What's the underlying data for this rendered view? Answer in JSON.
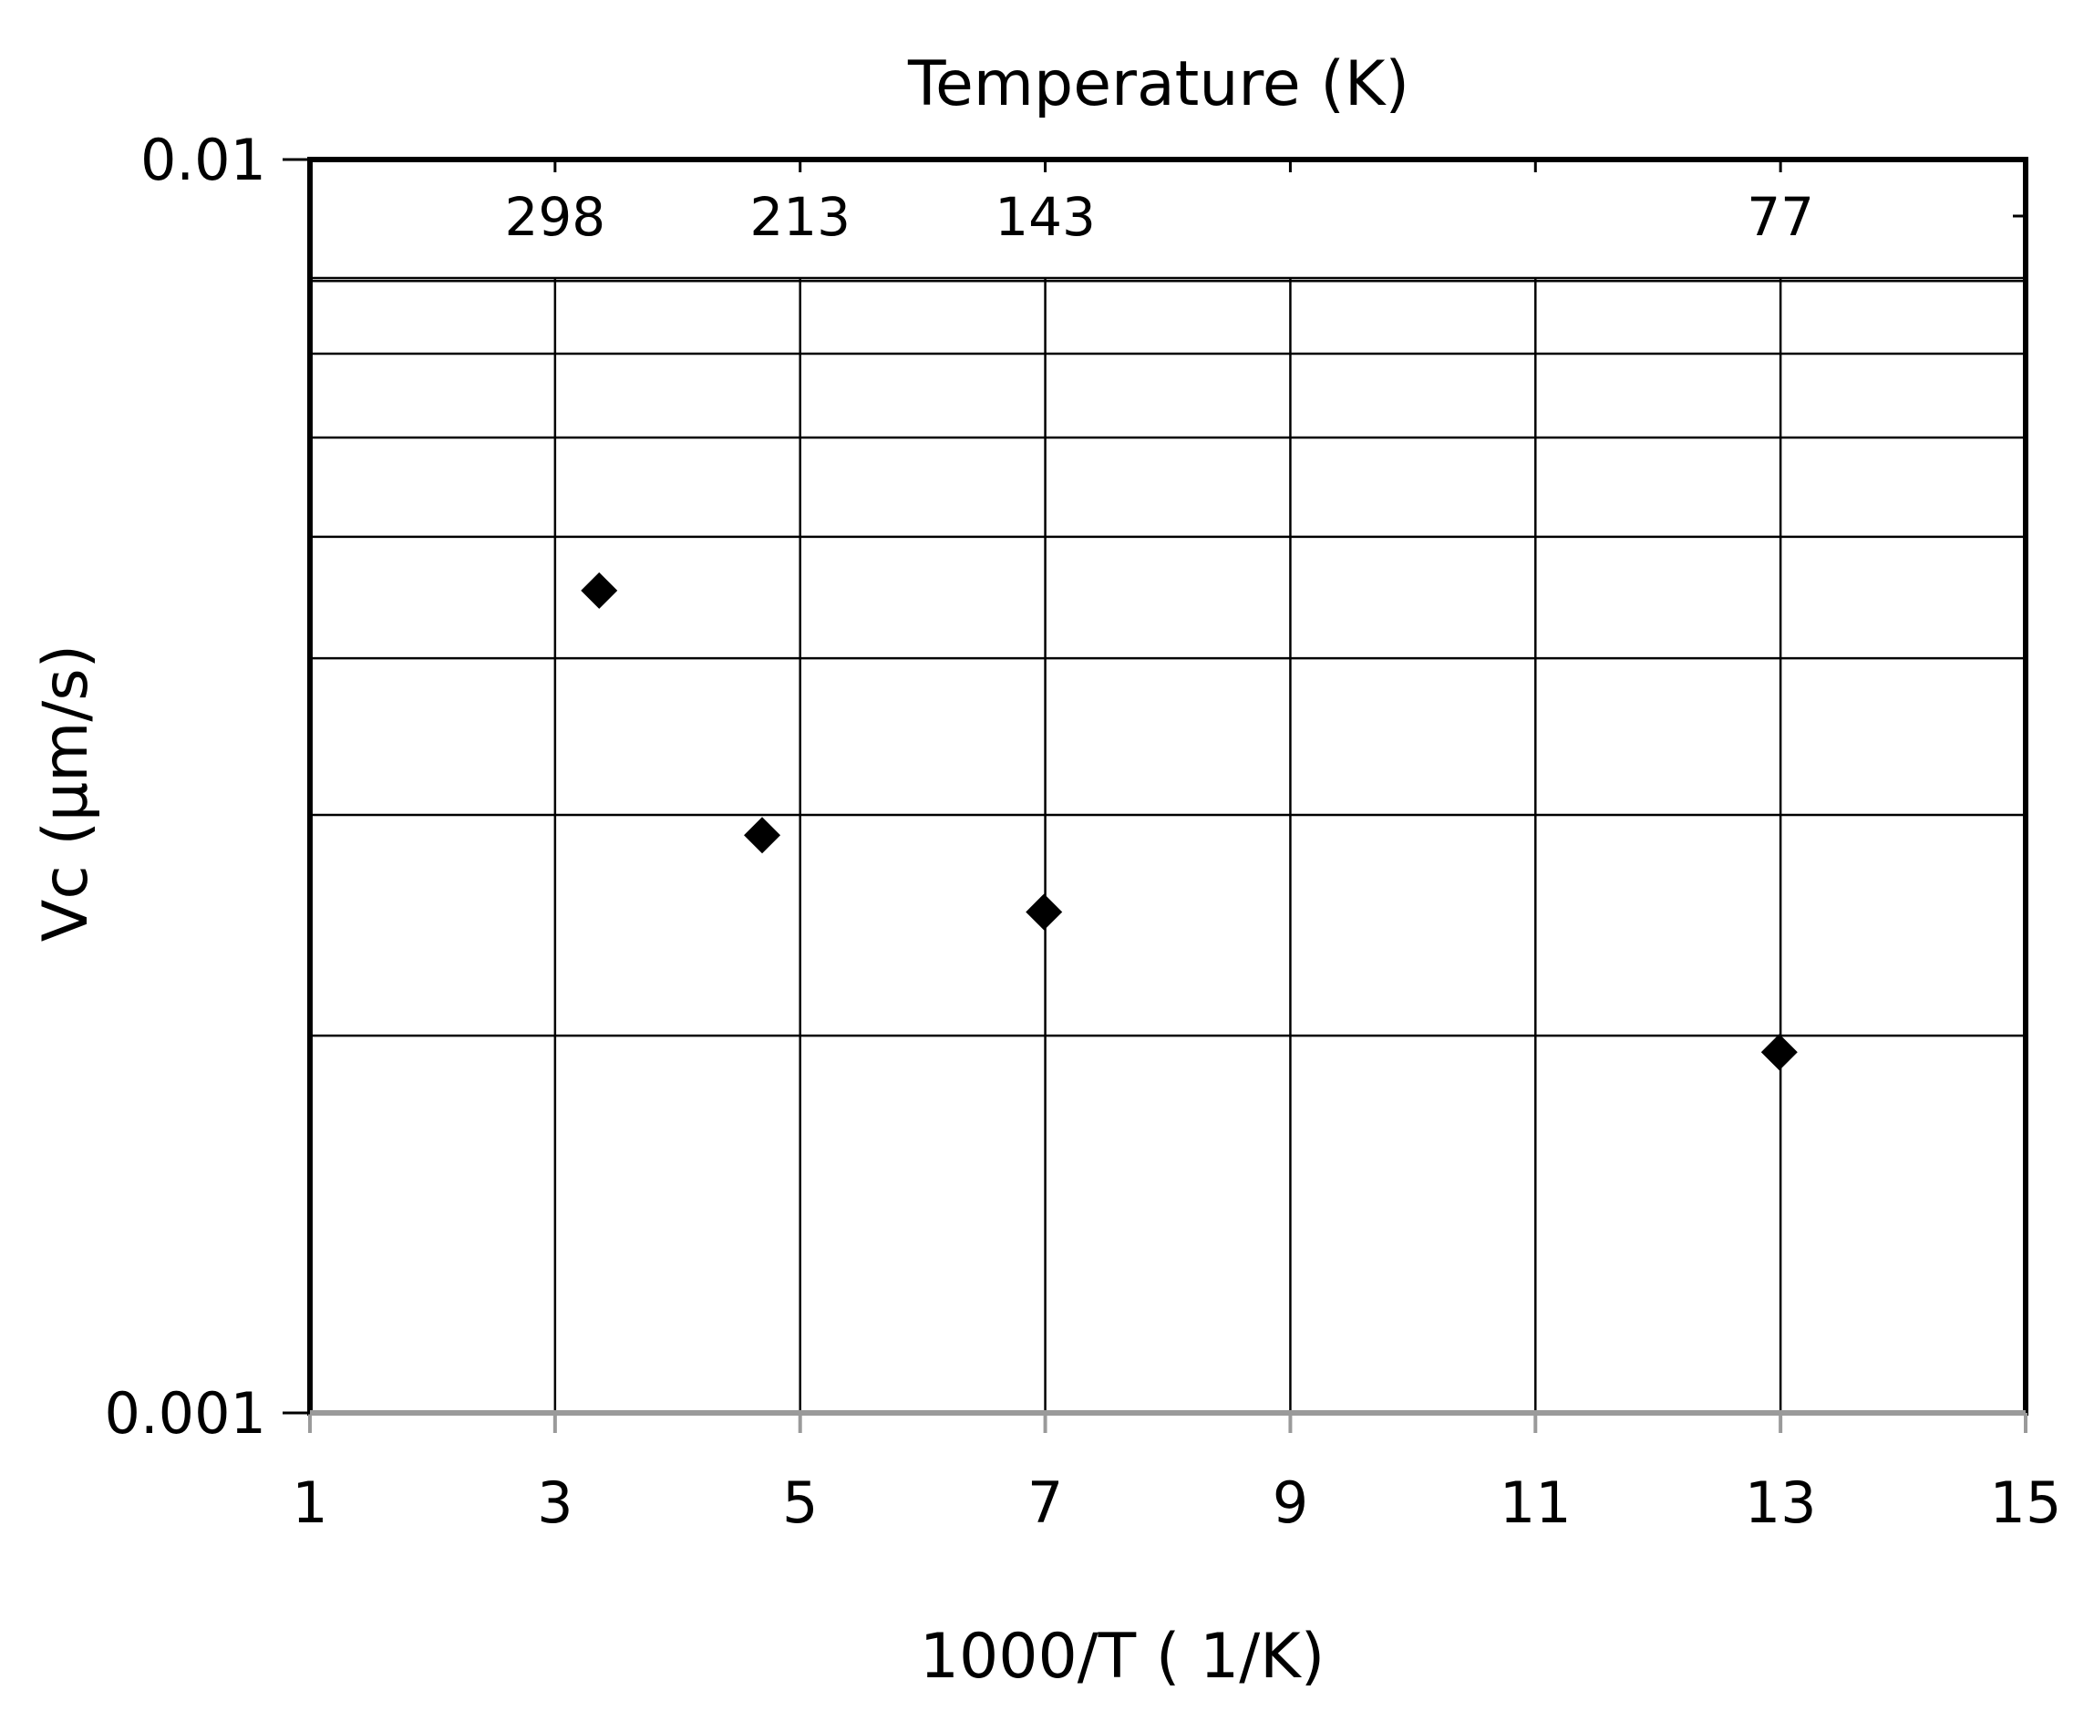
{
  "chart_data": {
    "type": "scatter",
    "title": "",
    "xlabel": "1000/T ( 1/K)",
    "ylabel": "Vc (µm/s)",
    "top_axis_label": "Temperature (K)",
    "xlim": [
      1,
      15
    ],
    "ylim": [
      0.001,
      0.01
    ],
    "y_scale": "log",
    "x_ticks": [
      1,
      3,
      5,
      7,
      9,
      11,
      13,
      15
    ],
    "x_tick_labels": [
      "1",
      "3",
      "5",
      "7",
      "9",
      "11",
      "13",
      "15"
    ],
    "y_tick_labels": [
      "0.01",
      "0.001"
    ],
    "top_ticks": [
      {
        "x": 3,
        "label": "298"
      },
      {
        "x": 5,
        "label": "213"
      },
      {
        "x": 7,
        "label": "143"
      },
      {
        "x": 13,
        "label": "77"
      }
    ],
    "y_minor_grid": [
      0.002,
      0.003,
      0.004,
      0.005,
      0.006,
      0.007,
      0.008
    ],
    "grid": true,
    "legend": "none",
    "marker": "diamond",
    "marker_color": "#000000",
    "series": [
      {
        "x": [
          3.36,
          4.69,
          6.99,
          12.99
        ],
        "y": [
          0.00453,
          0.00289,
          0.00251,
          0.00194
        ]
      }
    ]
  }
}
